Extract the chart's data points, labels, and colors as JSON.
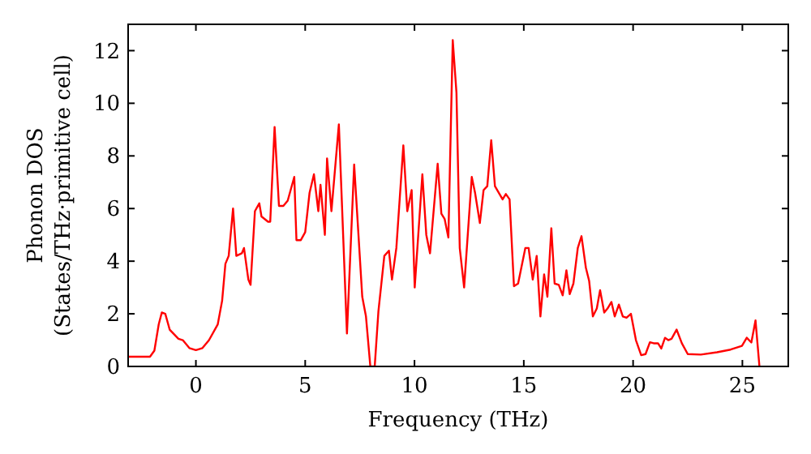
{
  "chart_data": {
    "type": "line",
    "xlabel": "Frequency (THz)",
    "ylabel": "Phonon DOS\n(States/THz·primitive cell)",
    "xlim": [
      -3.1,
      27.1
    ],
    "ylim": [
      0,
      13
    ],
    "xticks": [
      0,
      5,
      10,
      15,
      20,
      25
    ],
    "yticks": [
      0,
      2,
      4,
      6,
      8,
      10,
      12
    ],
    "grid": false,
    "marker": "none",
    "line_style": "solid",
    "series": [
      {
        "color": "#ff0000",
        "x": [
          -3.1,
          -2.1,
          -1.9,
          -1.7,
          -1.56,
          -1.4,
          -1.2,
          -0.8,
          -0.6,
          -0.3,
          0,
          0.3,
          0.6,
          1.0,
          1.2,
          1.35,
          1.5,
          1.7,
          1.85,
          2.1,
          2.2,
          2.4,
          2.5,
          2.7,
          2.9,
          3.0,
          3.3,
          3.4,
          3.6,
          3.8,
          4.0,
          4.2,
          4.5,
          4.6,
          4.8,
          5.0,
          5.2,
          5.4,
          5.6,
          5.7,
          5.9,
          6.0,
          6.2,
          6.54,
          6.91,
          7.24,
          7.61,
          7.78,
          7.98,
          8.18,
          8.35,
          8.62,
          8.83,
          8.97,
          9.17,
          9.49,
          9.67,
          9.87,
          10.01,
          10.36,
          10.54,
          10.71,
          11.06,
          11.23,
          11.38,
          11.55,
          11.75,
          11.92,
          12.07,
          12.27,
          12.62,
          12.77,
          12.99,
          13.16,
          13.33,
          13.51,
          13.68,
          14.03,
          14.18,
          14.35,
          14.55,
          14.74,
          15.07,
          15.22,
          15.41,
          15.59,
          15.76,
          15.93,
          16.08,
          16.26,
          16.41,
          16.6,
          16.78,
          16.95,
          17.1,
          17.27,
          17.47,
          17.64,
          17.84,
          17.99,
          18.16,
          18.34,
          18.49,
          18.68,
          18.83,
          19.01,
          19.16,
          19.35,
          19.53,
          19.7,
          19.9,
          20.13,
          20.37,
          20.57,
          20.77,
          20.94,
          21.14,
          21.29,
          21.46,
          21.61,
          21.76,
          21.99,
          22.23,
          22.5,
          23.1,
          23.84,
          24.46,
          24.98,
          25.2,
          25.41,
          25.6,
          25.78
        ],
        "values": [
          0.37,
          0.37,
          0.6,
          1.6,
          2.05,
          2.0,
          1.4,
          1.05,
          1.0,
          0.7,
          0.62,
          0.7,
          1.0,
          1.6,
          2.5,
          3.9,
          4.2,
          6.0,
          4.2,
          4.3,
          4.5,
          3.3,
          3.1,
          5.9,
          6.2,
          5.7,
          5.5,
          5.5,
          9.1,
          6.1,
          6.1,
          6.3,
          7.2,
          4.8,
          4.8,
          5.1,
          6.6,
          7.3,
          5.9,
          6.9,
          5.0,
          7.9,
          5.9,
          9.2,
          1.25,
          7.67,
          2.65,
          1.9,
          0,
          0,
          2.1,
          4.2,
          4.4,
          3.3,
          4.5,
          8.4,
          5.9,
          6.7,
          3.0,
          7.3,
          5.0,
          4.3,
          7.7,
          5.8,
          5.6,
          4.9,
          12.4,
          10.4,
          4.5,
          3.0,
          7.2,
          6.6,
          5.45,
          6.7,
          6.85,
          8.6,
          6.85,
          6.35,
          6.55,
          6.35,
          3.05,
          3.15,
          4.5,
          4.5,
          3.3,
          4.2,
          1.9,
          3.5,
          2.65,
          5.25,
          3.15,
          3.1,
          2.7,
          3.65,
          2.75,
          3.15,
          4.5,
          4.95,
          3.75,
          3.25,
          1.9,
          2.2,
          2.9,
          2.05,
          2.2,
          2.45,
          1.9,
          2.35,
          1.9,
          1.85,
          2.0,
          1.0,
          0.43,
          0.47,
          0.92,
          0.88,
          0.88,
          0.68,
          1.09,
          1.0,
          1.05,
          1.4,
          0.88,
          0.47,
          0.45,
          0.54,
          0.64,
          0.78,
          1.09,
          0.91,
          1.75,
          0
        ]
      }
    ]
  }
}
